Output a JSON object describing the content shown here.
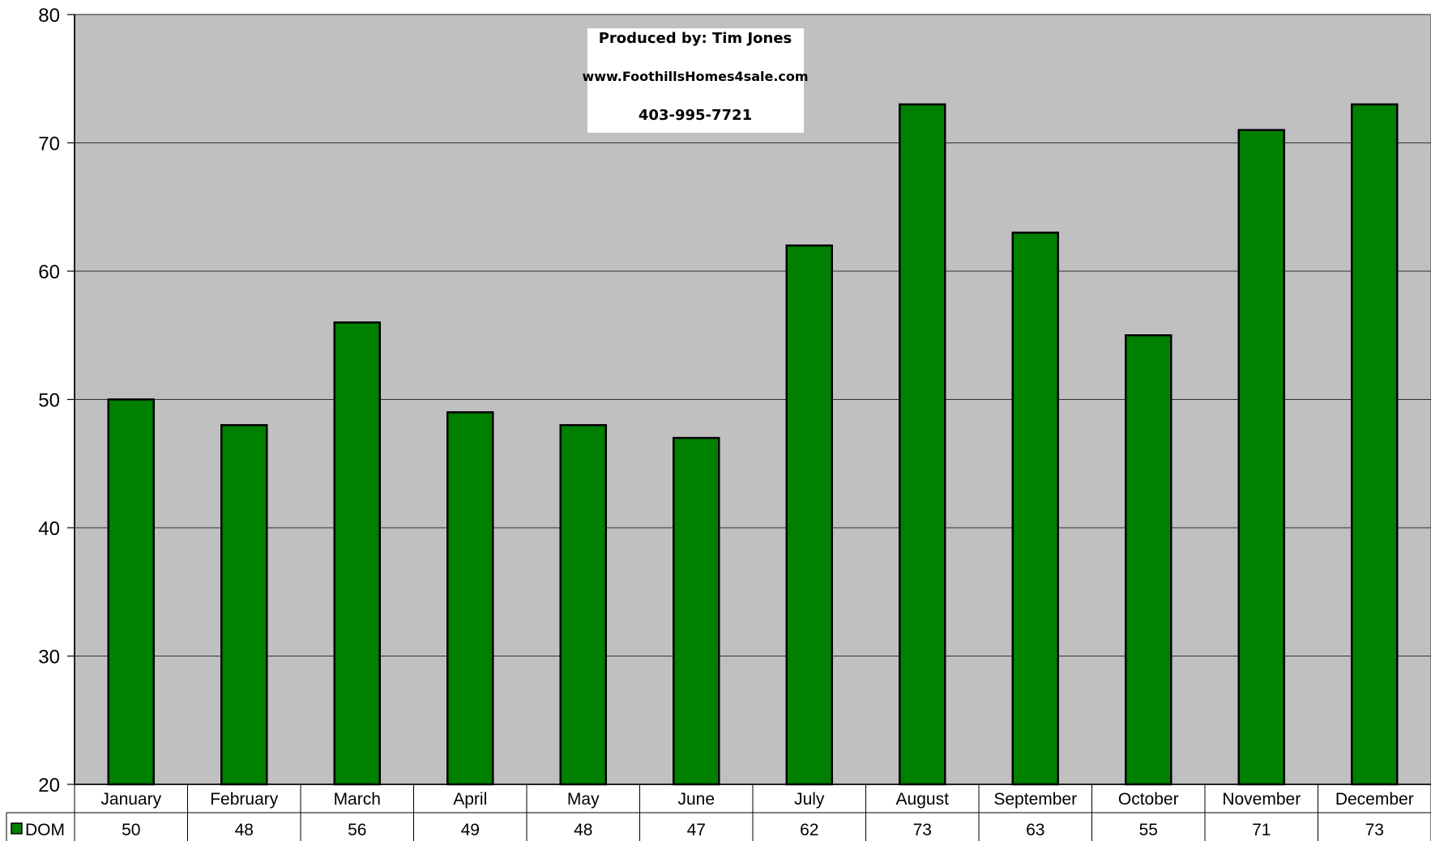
{
  "chart_data": {
    "type": "bar",
    "categories": [
      "January",
      "February",
      "March",
      "April",
      "May",
      "June",
      "July",
      "August",
      "September",
      "October",
      "November",
      "December"
    ],
    "series": [
      {
        "name": "DOM",
        "values": [
          50,
          48,
          56,
          49,
          48,
          47,
          62,
          73,
          63,
          55,
          71,
          73
        ],
        "color": "#008000"
      }
    ],
    "ylim": [
      20,
      80
    ],
    "yticks": [
      "80",
      "70",
      "60",
      "50",
      "40",
      "30",
      "20"
    ],
    "grid": true,
    "plot_background": "#c0c0c0",
    "data_table": true,
    "annotation": {
      "line1": "Produced by: Tim Jones",
      "line2": "www.FoothillsHomes4sale.com",
      "line3": "403-995-7721"
    }
  }
}
